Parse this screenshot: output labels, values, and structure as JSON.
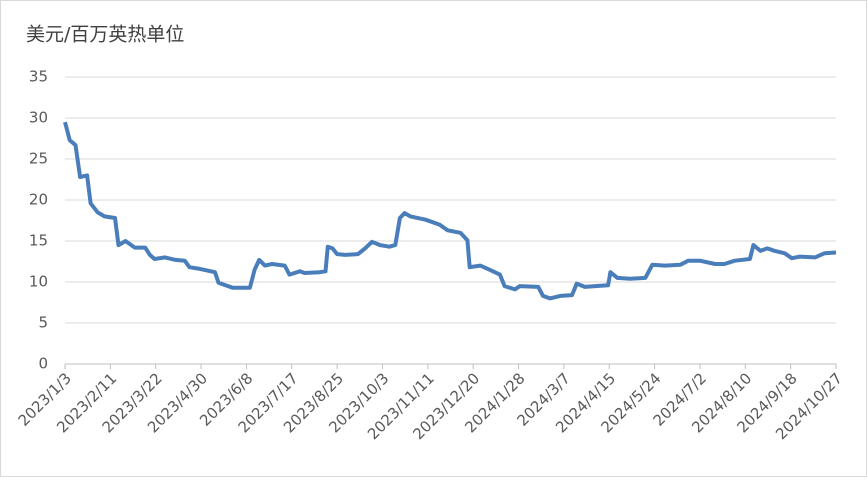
{
  "chart_data": {
    "type": "line",
    "title": "美元/百万英热单位",
    "x": [
      "2023/1/3",
      "2023/1/7",
      "2023/1/12",
      "2023/1/16",
      "2023/1/22",
      "2023/1/25",
      "2023/1/31",
      "2023/2/6",
      "2023/2/15",
      "2023/2/18",
      "2023/2/24",
      "2023/3/4",
      "2023/3/13",
      "2023/3/17",
      "2023/3/21",
      "2023/3/30",
      "2023/4/8",
      "2023/4/16",
      "2023/4/20",
      "2023/4/29",
      "2023/5/12",
      "2023/5/15",
      "2023/5/21",
      "2023/5/27",
      "2023/6/11",
      "2023/6/15",
      "2023/6/19",
      "2023/6/24",
      "2023/6/30",
      "2023/7/11",
      "2023/7/15",
      "2023/7/24",
      "2023/7/28",
      "2023/8/10",
      "2023/8/15",
      "2023/8/17",
      "2023/8/21",
      "2023/8/25",
      "2023/9/1",
      "2023/9/12",
      "2023/9/18",
      "2023/9/24",
      "2023/10/1",
      "2023/10/9",
      "2023/10/14",
      "2023/10/18",
      "2023/10/22",
      "2023/10/27",
      "2023/11/9",
      "2023/11/21",
      "2023/11/28",
      "2023/12/9",
      "2023/12/15",
      "2023/12/17",
      "2023/12/26",
      "2024/1/3",
      "2024/1/12",
      "2024/1/16",
      "2024/1/25",
      "2024/1/29",
      "2024/2/14",
      "2024/2/18",
      "2024/2/24",
      "2024/3/4",
      "2024/3/14",
      "2024/3/18",
      "2024/3/25",
      "2024/4/3",
      "2024/4/14",
      "2024/4/16",
      "2024/4/22",
      "2024/5/3",
      "2024/5/16",
      "2024/5/22",
      "2024/6/2",
      "2024/6/15",
      "2024/6/22",
      "2024/7/2",
      "2024/7/15",
      "2024/7/23",
      "2024/8/1",
      "2024/8/14",
      "2024/8/17",
      "2024/8/23",
      "2024/8/29",
      "2024/9/4",
      "2024/9/13",
      "2024/9/19",
      "2024/9/26",
      "2024/10/9",
      "2024/10/17",
      "2024/10/27"
    ],
    "series": [
      {
        "color": "#4a7ebb",
        "values": [
          29.5,
          27.3,
          26.7,
          22.8,
          23.0,
          19.6,
          18.5,
          18.0,
          17.8,
          14.5,
          15.0,
          14.2,
          14.2,
          13.3,
          12.8,
          13.0,
          12.7,
          12.6,
          11.8,
          11.6,
          11.2,
          9.9,
          9.6,
          9.3,
          9.3,
          11.5,
          12.7,
          12.0,
          12.2,
          12.0,
          10.9,
          11.3,
          11.1,
          11.2,
          11.3,
          14.3,
          14.1,
          13.4,
          13.3,
          13.4,
          14.1,
          14.9,
          14.5,
          14.3,
          14.5,
          17.8,
          18.4,
          18.0,
          17.6,
          17.0,
          16.3,
          16.0,
          15.1,
          11.8,
          12.0,
          11.5,
          10.9,
          9.5,
          9.1,
          9.5,
          9.4,
          8.3,
          8.0,
          8.3,
          8.4,
          9.8,
          9.4,
          9.5,
          9.6,
          11.2,
          10.5,
          10.4,
          10.5,
          12.1,
          12.0,
          12.1,
          12.6,
          12.6,
          12.2,
          12.2,
          12.6,
          12.8,
          14.5,
          13.8,
          14.1,
          13.8,
          13.5,
          12.9,
          13.1,
          13.0,
          13.5,
          13.6
        ]
      }
    ],
    "xlim": [
      "2023/1/3",
      "2024/10/27"
    ],
    "xticks": [
      "2023/1/3",
      "2023/2/11",
      "2023/3/22",
      "2023/4/30",
      "2023/6/8",
      "2023/7/17",
      "2023/8/25",
      "2023/10/3",
      "2023/11/11",
      "2023/12/20",
      "2024/1/28",
      "2024/3/7",
      "2024/4/15",
      "2024/5/24",
      "2024/7/2",
      "2024/8/10",
      "2024/9/18",
      "2024/10/27"
    ],
    "ylim": [
      0,
      35
    ],
    "yticks": [
      0,
      5,
      10,
      15,
      20,
      25,
      30,
      35
    ],
    "grid": true
  }
}
